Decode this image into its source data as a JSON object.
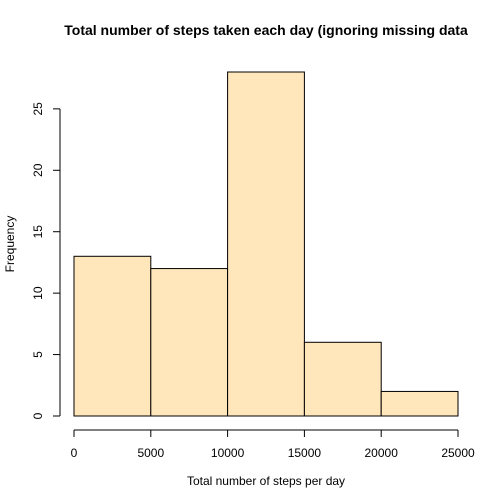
{
  "chart_data": {
    "type": "bar",
    "subtype": "histogram",
    "title": "Total number of steps taken each day (ignoring missing data",
    "xlabel": "Total number of steps per day",
    "ylabel": "Frequency",
    "bins": [
      {
        "start": 0,
        "end": 5000,
        "count": 13
      },
      {
        "start": 5000,
        "end": 10000,
        "count": 12
      },
      {
        "start": 10000,
        "end": 15000,
        "count": 28
      },
      {
        "start": 15000,
        "end": 20000,
        "count": 6
      },
      {
        "start": 20000,
        "end": 25000,
        "count": 2
      }
    ],
    "xlim": [
      0,
      25000
    ],
    "ylim": [
      0,
      28
    ],
    "xticks": [
      0,
      5000,
      10000,
      15000,
      20000,
      25000
    ],
    "yticks": [
      0,
      5,
      10,
      15,
      20,
      25
    ],
    "grid": false,
    "legend": "none",
    "bar_color": "#FFE6BB",
    "edge_color": "#000000"
  }
}
